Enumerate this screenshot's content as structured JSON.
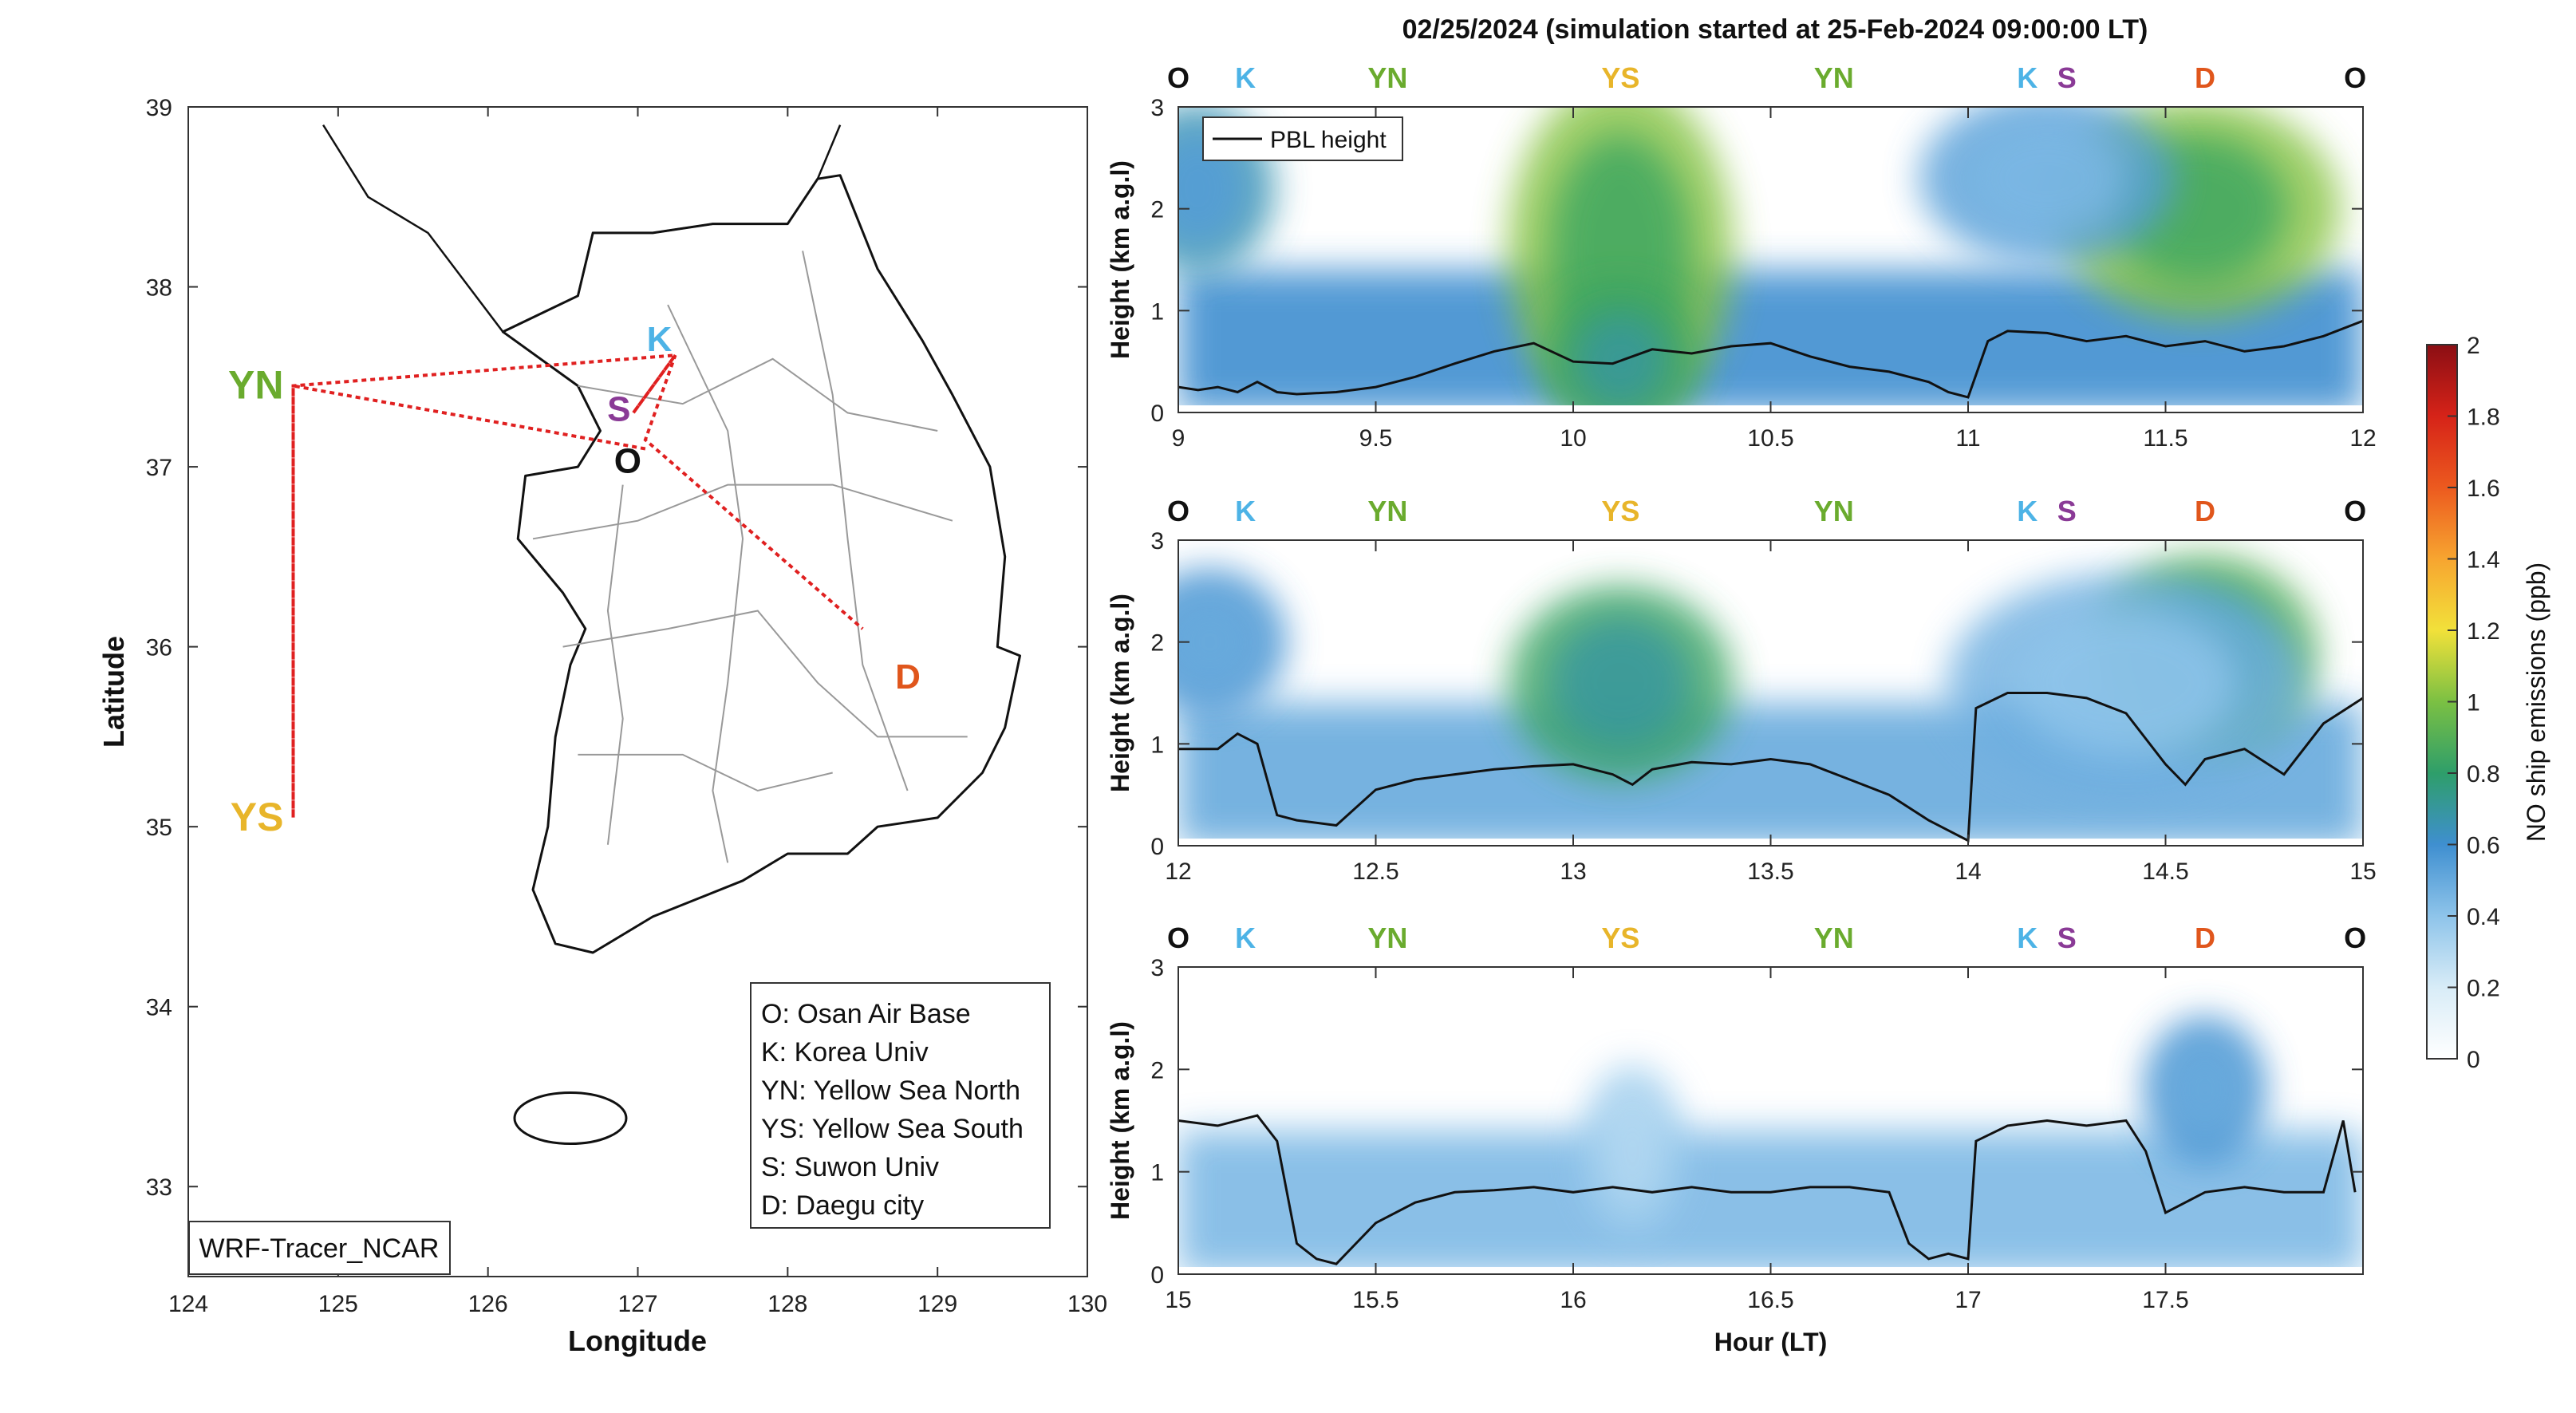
{
  "figure_title": "02/25/2024 (simulation started at 25-Feb-2024 09:00:00 LT)",
  "map": {
    "xlabel": "Longitude",
    "ylabel": "Latitude",
    "xlim": [
      124,
      130
    ],
    "ylim": [
      32.5,
      39
    ],
    "xticks": [
      "124",
      "125",
      "126",
      "127",
      "128",
      "129",
      "130"
    ],
    "yticks": [
      "33",
      "34",
      "35",
      "36",
      "37",
      "38",
      "39"
    ],
    "model_label": "WRF-Tracer_NCAR",
    "locations": [
      {
        "code": "YN",
        "lon": 124.7,
        "lat": 37.45,
        "color": "#6aab2e"
      },
      {
        "code": "YS",
        "lon": 124.7,
        "lat": 35.05,
        "color": "#e8b52a"
      },
      {
        "code": "K",
        "lon": 127.25,
        "lat": 37.6,
        "color": "#4db3e6"
      },
      {
        "code": "S",
        "lon": 126.97,
        "lat": 37.3,
        "color": "#8a3a96"
      },
      {
        "code": "O",
        "lon": 127.05,
        "lat": 37.1,
        "color": "#111111"
      },
      {
        "code": "D",
        "lon": 128.6,
        "lat": 35.9,
        "color": "#e0561c"
      }
    ],
    "route": [
      [
        127.05,
        37.1
      ],
      [
        124.7,
        37.45
      ],
      [
        124.7,
        35.05
      ],
      [
        124.7,
        37.45
      ],
      [
        127.25,
        37.62
      ],
      [
        126.97,
        37.3
      ],
      [
        127.25,
        37.62
      ],
      [
        127.05,
        37.15
      ],
      [
        128.5,
        36.1
      ]
    ],
    "legend": [
      "O: Osan Air Base",
      "K: Korea Univ",
      "YN: Yellow Sea North",
      "YS: Yellow Sea South",
      "S: Suwon Univ",
      "D: Daegu city"
    ]
  },
  "chart_data": [
    {
      "type": "heatmap",
      "title": "02/25/2024 (simulation started at 25-Feb-2024 09:00:00 LT)",
      "xlabel": "",
      "ylabel": "Height (km a.g.l)",
      "xlim": [
        9,
        12
      ],
      "ylim": [
        0,
        3
      ],
      "xticks": [
        "9",
        "9.5",
        "10",
        "10.5",
        "11",
        "11.5",
        "12"
      ],
      "yticks": [
        "0",
        "1",
        "2",
        "3"
      ],
      "top_labels": [
        {
          "code": "O",
          "x": 9.0
        },
        {
          "code": "K",
          "x": 9.17
        },
        {
          "code": "YN",
          "x": 9.53
        },
        {
          "code": "YS",
          "x": 10.12
        },
        {
          "code": "YN",
          "x": 10.66
        },
        {
          "code": "K",
          "x": 11.15
        },
        {
          "code": "S",
          "x": 11.25
        },
        {
          "code": "D",
          "x": 11.6
        },
        {
          "code": "O",
          "x": 11.98
        }
      ],
      "legend": "PBL height",
      "pbl_height": {
        "x": [
          9.0,
          9.05,
          9.1,
          9.15,
          9.2,
          9.25,
          9.3,
          9.4,
          9.5,
          9.6,
          9.7,
          9.8,
          9.9,
          10.0,
          10.1,
          10.2,
          10.3,
          10.4,
          10.5,
          10.6,
          10.7,
          10.8,
          10.9,
          10.95,
          11.0,
          11.05,
          11.1,
          11.2,
          11.3,
          11.4,
          11.5,
          11.6,
          11.7,
          11.8,
          11.9,
          12.0
        ],
        "y": [
          0.25,
          0.22,
          0.25,
          0.2,
          0.3,
          0.2,
          0.18,
          0.2,
          0.25,
          0.35,
          0.48,
          0.6,
          0.68,
          0.5,
          0.48,
          0.62,
          0.58,
          0.65,
          0.68,
          0.55,
          0.45,
          0.4,
          0.3,
          0.2,
          0.15,
          0.7,
          0.8,
          0.78,
          0.7,
          0.75,
          0.65,
          0.7,
          0.6,
          0.65,
          0.75,
          0.9
        ]
      },
      "plumes": [
        {
          "x": 9.05,
          "z": 2.2,
          "wx": 0.15,
          "wz": 0.7,
          "v": 0.55
        },
        {
          "x": 10.12,
          "z": 1.6,
          "wx": 0.22,
          "wz": 1.4,
          "v": 0.85
        },
        {
          "x": 10.12,
          "z": 0.5,
          "wx": 0.15,
          "wz": 0.6,
          "v": 0.7
        },
        {
          "x": 11.58,
          "z": 2.0,
          "wx": 0.28,
          "wz": 0.9,
          "v": 0.85
        },
        {
          "x": 11.2,
          "z": 2.3,
          "wx": 0.25,
          "wz": 0.7,
          "v": 0.45
        }
      ],
      "background": 0.3
    },
    {
      "type": "heatmap",
      "xlabel": "",
      "ylabel": "Height (km a.g.l)",
      "xlim": [
        12,
        15
      ],
      "ylim": [
        0,
        3
      ],
      "xticks": [
        "12",
        "12.5",
        "13",
        "13.5",
        "14",
        "14.5",
        "15"
      ],
      "yticks": [
        "0",
        "1",
        "2",
        "3"
      ],
      "top_labels": [
        {
          "code": "O",
          "x": 12.0
        },
        {
          "code": "K",
          "x": 12.17
        },
        {
          "code": "YN",
          "x": 12.53
        },
        {
          "code": "YS",
          "x": 13.12
        },
        {
          "code": "YN",
          "x": 13.66
        },
        {
          "code": "K",
          "x": 14.15
        },
        {
          "code": "S",
          "x": 14.25
        },
        {
          "code": "D",
          "x": 14.6
        },
        {
          "code": "O",
          "x": 14.98
        }
      ],
      "pbl_height": {
        "x": [
          12.0,
          12.1,
          12.15,
          12.2,
          12.25,
          12.3,
          12.4,
          12.5,
          12.6,
          12.7,
          12.8,
          12.9,
          13.0,
          13.1,
          13.15,
          13.2,
          13.3,
          13.4,
          13.5,
          13.6,
          13.7,
          13.8,
          13.9,
          13.95,
          14.0,
          14.02,
          14.1,
          14.2,
          14.3,
          14.4,
          14.5,
          14.55,
          14.6,
          14.7,
          14.8,
          14.9,
          15.0
        ],
        "y": [
          0.95,
          0.95,
          1.1,
          1.0,
          0.3,
          0.25,
          0.2,
          0.55,
          0.65,
          0.7,
          0.75,
          0.78,
          0.8,
          0.7,
          0.6,
          0.75,
          0.82,
          0.8,
          0.85,
          0.8,
          0.65,
          0.5,
          0.25,
          0.15,
          0.05,
          1.35,
          1.5,
          1.5,
          1.45,
          1.3,
          0.8,
          0.6,
          0.85,
          0.95,
          0.7,
          1.2,
          1.45
        ]
      },
      "plumes": [
        {
          "x": 12.08,
          "z": 2.0,
          "wx": 0.15,
          "wz": 0.6,
          "v": 0.5
        },
        {
          "x": 13.12,
          "z": 1.6,
          "wx": 0.22,
          "wz": 0.8,
          "v": 0.7
        },
        {
          "x": 14.6,
          "z": 1.9,
          "wx": 0.22,
          "wz": 0.8,
          "v": 0.75
        },
        {
          "x": 14.4,
          "z": 1.6,
          "wx": 0.35,
          "wz": 0.9,
          "v": 0.4
        }
      ],
      "background": 0.25
    },
    {
      "type": "heatmap",
      "xlabel": "Hour (LT)",
      "ylabel": "Height (km a.g.l)",
      "xlim": [
        15,
        18
      ],
      "ylim": [
        0,
        3
      ],
      "xticks": [
        "15",
        "15.5",
        "16",
        "16.5",
        "17",
        "17.5"
      ],
      "yticks": [
        "0",
        "1",
        "2",
        "3"
      ],
      "top_labels": [
        {
          "code": "O",
          "x": 15.0
        },
        {
          "code": "K",
          "x": 15.17
        },
        {
          "code": "YN",
          "x": 15.53
        },
        {
          "code": "YS",
          "x": 16.12
        },
        {
          "code": "YN",
          "x": 16.66
        },
        {
          "code": "K",
          "x": 17.15
        },
        {
          "code": "S",
          "x": 17.25
        },
        {
          "code": "D",
          "x": 17.6
        },
        {
          "code": "O",
          "x": 17.98
        }
      ],
      "pbl_height": {
        "x": [
          15.0,
          15.1,
          15.2,
          15.25,
          15.3,
          15.35,
          15.4,
          15.45,
          15.5,
          15.6,
          15.7,
          15.8,
          15.9,
          16.0,
          16.1,
          16.2,
          16.3,
          16.4,
          16.5,
          16.6,
          16.7,
          16.8,
          16.85,
          16.9,
          16.95,
          17.0,
          17.02,
          17.1,
          17.2,
          17.3,
          17.4,
          17.45,
          17.5,
          17.6,
          17.7,
          17.8,
          17.9,
          17.95,
          17.98
        ],
        "y": [
          1.5,
          1.45,
          1.55,
          1.3,
          0.3,
          0.15,
          0.1,
          0.3,
          0.5,
          0.7,
          0.8,
          0.82,
          0.85,
          0.8,
          0.85,
          0.8,
          0.85,
          0.8,
          0.8,
          0.85,
          0.85,
          0.8,
          0.3,
          0.15,
          0.2,
          0.15,
          1.3,
          1.45,
          1.5,
          1.45,
          1.5,
          1.2,
          0.6,
          0.8,
          0.85,
          0.8,
          0.8,
          1.5,
          0.8
        ]
      },
      "plumes": [
        {
          "x": 17.6,
          "z": 1.8,
          "wx": 0.12,
          "wz": 0.6,
          "v": 0.5
        },
        {
          "x": 16.15,
          "z": 1.2,
          "wx": 0.1,
          "wz": 0.7,
          "v": 0.3
        }
      ],
      "background": 0.22
    }
  ],
  "colorbar": {
    "label": "NO ship emissions (ppb)",
    "ticks": [
      "0",
      "0.2",
      "0.4",
      "0.6",
      "0.8",
      "1",
      "1.2",
      "1.4",
      "1.6",
      "1.8",
      "2"
    ],
    "range": [
      0,
      2
    ]
  }
}
